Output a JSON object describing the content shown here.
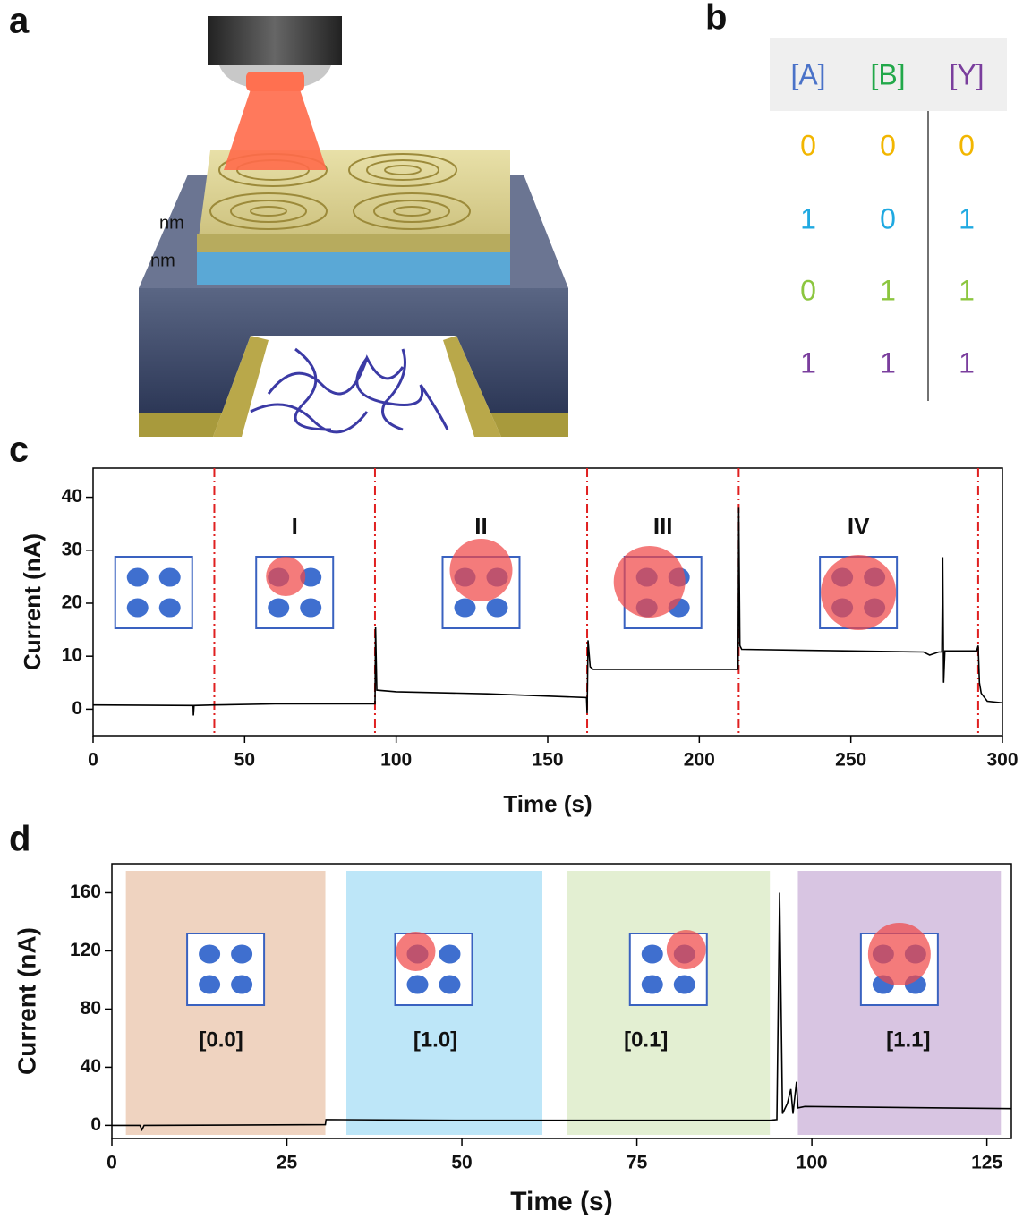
{
  "panel_labels": [
    "a",
    "b",
    "c",
    "d"
  ],
  "illustration": {
    "labels": [
      "nm",
      "nm"
    ]
  },
  "table": {
    "header": [
      "[A]",
      "[B]",
      "[Y]"
    ],
    "header_colors": [
      "#4a72c8",
      "#22a84a",
      "#7a3e9d"
    ],
    "rows": [
      [
        0,
        0,
        0
      ],
      [
        1,
        0,
        1
      ],
      [
        0,
        1,
        1
      ],
      [
        1,
        1,
        1
      ]
    ],
    "row_colors": [
      "#f2b600",
      "#1fa9e1",
      "#8cc63f",
      "#7a3e9d"
    ]
  },
  "chart_data": [
    {
      "type": "line",
      "x_label": "Time (s)",
      "y_label": "Current (nA)",
      "xlim": [
        0,
        300
      ],
      "ylim": [
        -5,
        45.5
      ],
      "xticks": [
        0,
        50,
        100,
        150,
        200,
        250,
        300
      ],
      "yticks": [
        0,
        10,
        20,
        30,
        40
      ],
      "markers": [
        40,
        93,
        163,
        213,
        292
      ],
      "marker_color": "#e02020",
      "annotations": [
        "I",
        "II",
        "III",
        "IV"
      ],
      "series": [
        {
          "color": "#000000",
          "x": [
            0,
            33,
            33.1,
            33.3,
            40,
            60,
            93,
            93.2,
            93.6,
            100,
            130,
            162.8,
            163,
            163.3,
            164,
            165,
            212.8,
            213,
            213.4,
            214,
            250,
            274,
            276,
            279,
            280,
            280.3,
            280.6,
            281,
            291.5,
            292,
            292.4,
            293,
            295,
            300
          ],
          "values": [
            0.8,
            0.7,
            -1.2,
            0.7,
            0.8,
            1.0,
            1.0,
            15.5,
            3.6,
            3.3,
            2.9,
            2.2,
            -0.8,
            13,
            8,
            7.5,
            7.5,
            38,
            12,
            11.3,
            11,
            10.8,
            10.2,
            10.8,
            10.8,
            28.7,
            5,
            11,
            11,
            12,
            5,
            3,
            1.5,
            1.2
          ]
        }
      ]
    },
    {
      "type": "line",
      "x_label": "Time (s)",
      "y_label": "Current (nA)",
      "xlim": [
        0,
        128.5
      ],
      "ylim": [
        -9,
        180
      ],
      "xticks": [
        0,
        25,
        50,
        75,
        100,
        125
      ],
      "yticks": [
        0,
        40,
        80,
        120,
        160
      ],
      "regions": [
        {
          "label": "[0.0]",
          "start": 2,
          "end": 30.5,
          "color": "#efd3c0"
        },
        {
          "label": "[1.0]",
          "start": 33.5,
          "end": 61.5,
          "color": "#bde6f8"
        },
        {
          "label": "[0.1]",
          "start": 65,
          "end": 94,
          "color": "#e3efd2"
        },
        {
          "label": "[1.1]",
          "start": 98,
          "end": 127,
          "color": "#d8c5e2"
        }
      ],
      "series": [
        {
          "color": "#000000",
          "x": [
            0,
            4,
            4.3,
            4.6,
            30.5,
            30.6,
            50,
            94,
            95,
            95.4,
            95.8,
            96.5,
            97,
            97.3,
            97.8,
            98,
            99,
            128.5
          ],
          "values": [
            0,
            0,
            -3,
            0,
            0.5,
            4,
            3.5,
            3.5,
            4,
            160,
            8,
            15,
            25,
            8,
            30,
            12,
            13,
            11.5
          ]
        }
      ]
    }
  ]
}
